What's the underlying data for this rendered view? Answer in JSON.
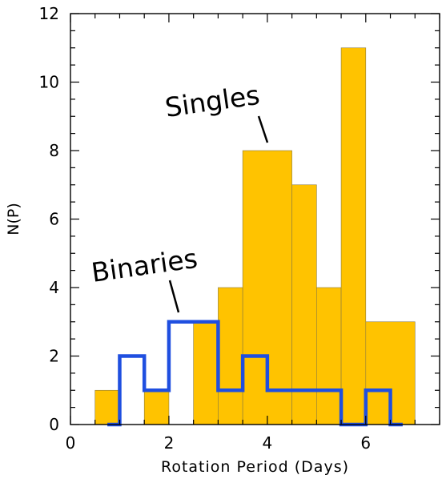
{
  "chart_data": {
    "type": "bar",
    "xlabel": "Rotation Period (Days)",
    "ylabel": "N(P)",
    "xlim": [
      0,
      7.5
    ],
    "ylim": [
      0,
      12
    ],
    "xticks": [
      "0",
      "2",
      "4",
      "6"
    ],
    "yticks": [
      "0",
      "2",
      "4",
      "6",
      "8",
      "10",
      "12"
    ],
    "x_bin_width": 0.5,
    "series": [
      {
        "name": "Singles",
        "style": "filled",
        "color": "#FFC300",
        "bins": [
          {
            "x0": 0.5,
            "x1": 1.0,
            "value": 1
          },
          {
            "x0": 1.0,
            "x1": 1.5,
            "value": 0
          },
          {
            "x0": 1.5,
            "x1": 2.0,
            "value": 1
          },
          {
            "x0": 2.0,
            "x1": 2.5,
            "value": 0
          },
          {
            "x0": 2.5,
            "x1": 3.0,
            "value": 3
          },
          {
            "x0": 3.0,
            "x1": 3.5,
            "value": 4
          },
          {
            "x0": 3.5,
            "x1": 4.5,
            "value": 8
          },
          {
            "x0": 4.5,
            "x1": 5.0,
            "value": 7
          },
          {
            "x0": 5.0,
            "x1": 5.5,
            "value": 4
          },
          {
            "x0": 5.5,
            "x1": 6.0,
            "value": 11
          },
          {
            "x0": 6.0,
            "x1": 7.0,
            "value": 3
          }
        ]
      },
      {
        "name": "Binaries",
        "style": "step-outline",
        "color": "#1F4FE0",
        "bins": [
          {
            "x0": 0.75,
            "x1": 1.0,
            "value": 0
          },
          {
            "x0": 1.0,
            "x1": 1.5,
            "value": 2
          },
          {
            "x0": 1.5,
            "x1": 2.0,
            "value": 1
          },
          {
            "x0": 2.0,
            "x1": 3.0,
            "value": 3
          },
          {
            "x0": 3.0,
            "x1": 3.5,
            "value": 1
          },
          {
            "x0": 3.5,
            "x1": 4.0,
            "value": 2
          },
          {
            "x0": 4.0,
            "x1": 5.5,
            "value": 1
          },
          {
            "x0": 5.5,
            "x1": 6.0,
            "value": 0
          },
          {
            "x0": 6.0,
            "x1": 6.5,
            "value": 1
          },
          {
            "x0": 6.5,
            "x1": 6.75,
            "value": 0
          }
        ]
      }
    ],
    "annotations": [
      {
        "text": "Singles",
        "target": "Singles"
      },
      {
        "text": "Binaries",
        "target": "Binaries"
      }
    ],
    "grid": false
  }
}
